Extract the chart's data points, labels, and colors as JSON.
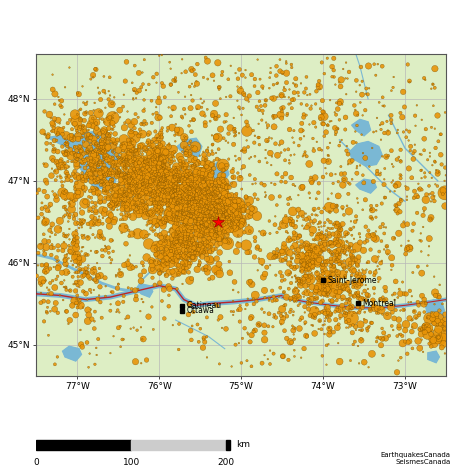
{
  "lon_min": -77.5,
  "lon_max": -72.5,
  "lat_min": 44.62,
  "lat_max": 48.55,
  "background_color": "#ddeec4",
  "grid_color": "#b8b8b8",
  "water_color": "#7ab8d4",
  "river_line_color": "#7ab8d4",
  "border_line_color": "#ff0000",
  "lat_ticks": [
    45,
    46,
    47,
    48
  ],
  "lon_ticks": [
    -77,
    -76,
    -75,
    -74,
    -73
  ],
  "cities": [
    {
      "name": "Gatineau",
      "lon": -75.72,
      "lat": 45.475,
      "sq": true
    },
    {
      "name": "Ottawa",
      "lon": -75.72,
      "lat": 45.415,
      "sq": true
    },
    {
      "name": "Saint-Jerome",
      "lon": -74.0,
      "lat": 45.785,
      "sq": true
    },
    {
      "name": "Montreal",
      "lon": -73.57,
      "lat": 45.505,
      "sq": true
    }
  ],
  "eq_color": "#E89408",
  "eq_edge_color": "#7a5000",
  "red_star_lon": -75.28,
  "red_star_lat": 46.5,
  "credit": "EarthquakesCanada\nSeismesCanada",
  "seed": 12345
}
